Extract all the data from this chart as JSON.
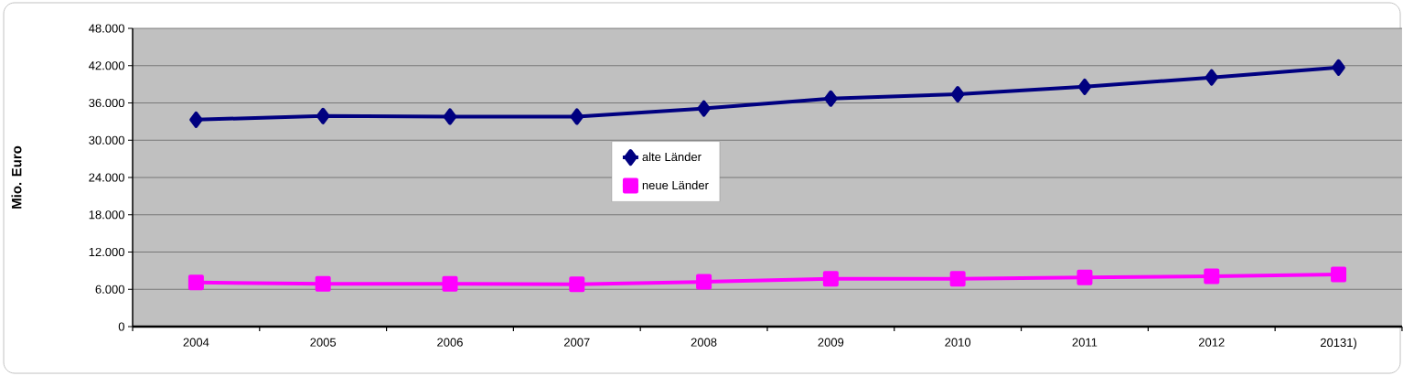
{
  "chart_data": {
    "type": "line",
    "ylabel": "Mio. Euro",
    "categories": [
      "2004",
      "2005",
      "2006",
      "2007",
      "2008",
      "2009",
      "2010",
      "2011",
      "2012",
      "20131)"
    ],
    "series": [
      {
        "name": "alte Länder",
        "color": "#000080",
        "marker": "diamond",
        "values": [
          33300,
          33900,
          33800,
          33800,
          35100,
          36700,
          37400,
          38600,
          40100,
          41700
        ]
      },
      {
        "name": "neue Länder",
        "color": "#ff00ff",
        "marker": "square",
        "values": [
          7100,
          6900,
          6900,
          6800,
          7200,
          7700,
          7700,
          7900,
          8100,
          8400
        ]
      }
    ],
    "ylim": [
      0,
      48000
    ],
    "yticks": [
      {
        "value": 0,
        "label": "0"
      },
      {
        "value": 6000,
        "label": "6.000"
      },
      {
        "value": 12000,
        "label": "12.000"
      },
      {
        "value": 18000,
        "label": "18.000"
      },
      {
        "value": 24000,
        "label": "24.000"
      },
      {
        "value": 30000,
        "label": "30.000"
      },
      {
        "value": 36000,
        "label": "36.000"
      },
      {
        "value": 42000,
        "label": "42.000"
      },
      {
        "value": 48000,
        "label": "48.000"
      }
    ],
    "grid": "y",
    "legend": "center",
    "line_style": "solid"
  }
}
